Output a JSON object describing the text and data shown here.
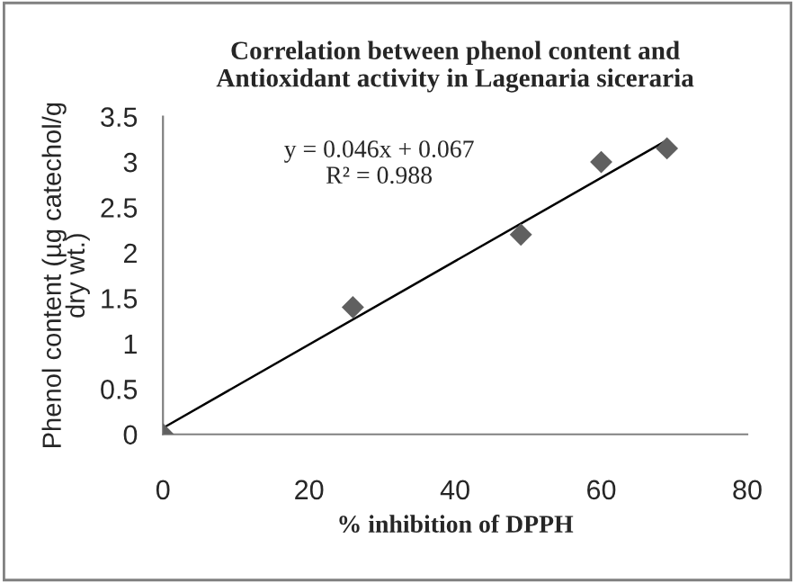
{
  "chart_data": {
    "type": "scatter",
    "title": "Correlation between phenol content and\nAntioxidant activity in Lagenaria siceraria",
    "xlabel": "% inhibition of DPPH",
    "ylabel": "Phenol content (µg catechol/g\ndry wt.)",
    "x": [
      0,
      26,
      49,
      60,
      69
    ],
    "series": [
      {
        "color": "#606060",
        "marker": "diamond",
        "values": [
          0,
          1.4,
          2.2,
          3.0,
          3.15
        ]
      },
      {
        "type": "line",
        "color": "#000000",
        "marker": "none",
        "x": [
          0,
          69
        ],
        "values": [
          0.07,
          3.24
        ]
      }
    ],
    "annotations": [
      "y = 0.046x + 0.067\nR² = 0.988"
    ],
    "xlim": [
      0,
      80
    ],
    "xticks": [
      0,
      20,
      40,
      60,
      80
    ],
    "ylim": [
      0,
      3.5
    ],
    "yticks": [
      0,
      0.5,
      1,
      1.5,
      2,
      2.5,
      3,
      3.5
    ],
    "grid": false,
    "legend": false
  }
}
